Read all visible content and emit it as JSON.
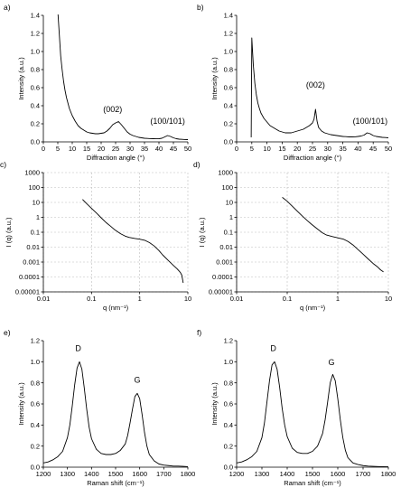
{
  "chart_data": [
    {
      "id": "a",
      "type": "line",
      "panel_label": "a)",
      "xlabel": "Diffraction angle (°)",
      "ylabel": "Intensity (a.u.)",
      "xlim": [
        0,
        50
      ],
      "ylim": [
        0,
        1.4
      ],
      "xscale": "linear",
      "yscale": "linear",
      "xticks": [
        "0",
        "5",
        "10",
        "15",
        "20",
        "25",
        "30",
        "35",
        "40",
        "45",
        "50"
      ],
      "yticks": [
        "0.0",
        "0.2",
        "0.4",
        "0.6",
        "0.8",
        "1.0",
        "1.2",
        "1.4"
      ],
      "grid": false,
      "x": [
        5,
        5.5,
        6,
        6.5,
        7,
        7.5,
        8,
        8.5,
        9,
        10,
        11,
        12,
        13,
        14,
        15,
        16,
        17,
        18,
        19,
        20,
        21,
        22,
        23,
        24,
        25,
        26,
        27,
        28,
        29,
        30,
        31,
        32,
        33,
        34,
        35,
        36,
        37,
        38,
        39,
        40,
        41,
        42,
        43,
        44,
        45,
        46,
        47,
        48,
        49,
        50
      ],
      "y": [
        1.45,
        1.2,
        0.95,
        0.8,
        0.67,
        0.57,
        0.49,
        0.43,
        0.37,
        0.29,
        0.23,
        0.18,
        0.15,
        0.13,
        0.11,
        0.1,
        0.095,
        0.09,
        0.09,
        0.095,
        0.1,
        0.12,
        0.15,
        0.19,
        0.21,
        0.225,
        0.19,
        0.15,
        0.11,
        0.085,
        0.07,
        0.06,
        0.05,
        0.045,
        0.04,
        0.038,
        0.036,
        0.035,
        0.034,
        0.035,
        0.04,
        0.055,
        0.07,
        0.06,
        0.045,
        0.035,
        0.03,
        0.028,
        0.026,
        0.025
      ],
      "annotations": [
        {
          "text": "(002)",
          "x": 24,
          "y": 0.33
        },
        {
          "text": "(100/101)",
          "x": 43,
          "y": 0.2
        }
      ]
    },
    {
      "id": "b",
      "type": "line",
      "panel_label": "b)",
      "xlabel": "Diffraction angle (°)",
      "ylabel": "Intensity (a.u.)",
      "xlim": [
        0,
        50
      ],
      "ylim": [
        0,
        1.4
      ],
      "xscale": "linear",
      "yscale": "linear",
      "xticks": [
        "0",
        "5",
        "10",
        "15",
        "20",
        "25",
        "30",
        "35",
        "40",
        "45",
        "50"
      ],
      "yticks": [
        "0.0",
        "0.2",
        "0.4",
        "0.6",
        "0.8",
        "1.0",
        "1.2",
        "1.4"
      ],
      "grid": false,
      "x": [
        4.8,
        5,
        5.5,
        6,
        6.5,
        7,
        7.5,
        8,
        9,
        10,
        11,
        12,
        13,
        14,
        15,
        16,
        17,
        18,
        19,
        20,
        21,
        22,
        23,
        24,
        25,
        25.5,
        26,
        26.5,
        27,
        28,
        29,
        30,
        31,
        32,
        33,
        34,
        35,
        36,
        37,
        38,
        39,
        40,
        41,
        42,
        43,
        44,
        45,
        46,
        47,
        48,
        49,
        50
      ],
      "y": [
        0.05,
        1.15,
        0.85,
        0.65,
        0.52,
        0.43,
        0.37,
        0.32,
        0.26,
        0.22,
        0.18,
        0.16,
        0.14,
        0.12,
        0.11,
        0.1,
        0.1,
        0.1,
        0.11,
        0.12,
        0.13,
        0.14,
        0.16,
        0.18,
        0.21,
        0.25,
        0.36,
        0.23,
        0.16,
        0.12,
        0.1,
        0.09,
        0.08,
        0.075,
        0.07,
        0.065,
        0.06,
        0.058,
        0.055,
        0.055,
        0.056,
        0.06,
        0.065,
        0.075,
        0.1,
        0.09,
        0.07,
        0.06,
        0.055,
        0.05,
        0.048,
        0.045
      ],
      "annotations": [
        {
          "text": "(002)",
          "x": 26,
          "y": 0.6
        },
        {
          "text": "(100/101)",
          "x": 44,
          "y": 0.2
        }
      ]
    },
    {
      "id": "c",
      "type": "line",
      "panel_label": "c)",
      "xlabel": "q (nm⁻¹)",
      "ylabel": "I (q) (a.u.)",
      "xlim": [
        0.01,
        10
      ],
      "ylim": [
        1e-05,
        1000
      ],
      "xscale": "log",
      "yscale": "log",
      "xticks": [
        "0.01",
        "0.1",
        "1",
        "10"
      ],
      "yticks": [
        "0.00001",
        "0.0001",
        "0.001",
        "0.01",
        "0.1",
        "1",
        "10",
        "100",
        "1000"
      ],
      "grid": true,
      "x": [
        0.065,
        0.08,
        0.1,
        0.13,
        0.16,
        0.2,
        0.25,
        0.3,
        0.4,
        0.5,
        0.6,
        0.8,
        1.0,
        1.3,
        1.6,
        2,
        2.5,
        3,
        4,
        5,
        6,
        7,
        7.5,
        8
      ],
      "y": [
        16,
        8,
        4,
        1.8,
        0.9,
        0.45,
        0.25,
        0.15,
        0.08,
        0.055,
        0.045,
        0.038,
        0.034,
        0.028,
        0.02,
        0.012,
        0.006,
        0.003,
        0.0012,
        0.0006,
        0.00035,
        0.0002,
        0.00013,
        4e-05
      ]
    },
    {
      "id": "d",
      "type": "line",
      "panel_label": "d)",
      "xlabel": "q (nm⁻¹)",
      "ylabel": "I (q) (a.u.)",
      "xlim": [
        0.01,
        10
      ],
      "ylim": [
        1e-05,
        1000
      ],
      "xscale": "log",
      "yscale": "log",
      "xticks": [
        "0.01",
        "0.1",
        "1",
        "10"
      ],
      "yticks": [
        "0.00001",
        "0.0001",
        "0.001",
        "0.01",
        "0.1",
        "1",
        "10",
        "100",
        "1000"
      ],
      "grid": true,
      "x": [
        0.08,
        0.1,
        0.13,
        0.16,
        0.2,
        0.25,
        0.3,
        0.4,
        0.5,
        0.6,
        0.8,
        1.0,
        1.3,
        1.6,
        2,
        2.5,
        3,
        4,
        5,
        6,
        7,
        8
      ],
      "y": [
        22,
        12,
        5,
        2.5,
        1.2,
        0.6,
        0.35,
        0.16,
        0.09,
        0.065,
        0.05,
        0.042,
        0.034,
        0.024,
        0.014,
        0.007,
        0.004,
        0.0016,
        0.0008,
        0.0005,
        0.0003,
        0.00022
      ]
    },
    {
      "id": "e",
      "type": "line",
      "panel_label": "e)",
      "xlabel": "Raman shift (cm⁻¹)",
      "ylabel": "Intensity (a.u.)",
      "xlim": [
        1200,
        1800
      ],
      "ylim": [
        0,
        1.2
      ],
      "xscale": "linear",
      "yscale": "linear",
      "xticks": [
        "1200",
        "1300",
        "1400",
        "1500",
        "1600",
        "1700",
        "1800"
      ],
      "yticks": [
        "0.0",
        "0.2",
        "0.4",
        "0.6",
        "0.8",
        "1.0",
        "1.2"
      ],
      "grid": false,
      "x": [
        1200,
        1220,
        1240,
        1260,
        1280,
        1300,
        1310,
        1320,
        1330,
        1340,
        1350,
        1360,
        1370,
        1380,
        1390,
        1400,
        1420,
        1440,
        1460,
        1480,
        1500,
        1520,
        1540,
        1550,
        1560,
        1570,
        1580,
        1590,
        1600,
        1610,
        1620,
        1630,
        1640,
        1660,
        1680,
        1700,
        1720,
        1740,
        1760,
        1780,
        1800
      ],
      "y": [
        0.04,
        0.05,
        0.07,
        0.1,
        0.15,
        0.28,
        0.4,
        0.58,
        0.78,
        0.94,
        1.0,
        0.93,
        0.75,
        0.55,
        0.38,
        0.27,
        0.17,
        0.13,
        0.12,
        0.12,
        0.13,
        0.16,
        0.22,
        0.3,
        0.42,
        0.55,
        0.67,
        0.7,
        0.65,
        0.5,
        0.33,
        0.2,
        0.12,
        0.06,
        0.03,
        0.02,
        0.015,
        0.01,
        0.01,
        0.008,
        0.005
      ],
      "annotations": [
        {
          "text": "D",
          "x": 1345,
          "y": 1.1
        },
        {
          "text": "G",
          "x": 1590,
          "y": 0.8
        }
      ]
    },
    {
      "id": "f",
      "type": "line",
      "panel_label": "f)",
      "xlabel": "Raman shift (cm⁻¹)",
      "ylabel": "Intensity (a.u.)",
      "xlim": [
        1200,
        1800
      ],
      "ylim": [
        0,
        1.2
      ],
      "xscale": "linear",
      "yscale": "linear",
      "xticks": [
        "1200",
        "1300",
        "1400",
        "1500",
        "1600",
        "1700",
        "1800"
      ],
      "yticks": [
        "0.0",
        "0.2",
        "0.4",
        "0.6",
        "0.8",
        "1.0",
        "1.2"
      ],
      "grid": false,
      "x": [
        1200,
        1220,
        1240,
        1260,
        1280,
        1300,
        1310,
        1320,
        1330,
        1340,
        1350,
        1360,
        1370,
        1380,
        1390,
        1400,
        1420,
        1440,
        1460,
        1480,
        1500,
        1520,
        1540,
        1550,
        1560,
        1570,
        1580,
        1590,
        1600,
        1610,
        1620,
        1630,
        1640,
        1660,
        1680,
        1700,
        1720,
        1740,
        1760,
        1780,
        1800
      ],
      "y": [
        0.04,
        0.05,
        0.07,
        0.1,
        0.15,
        0.28,
        0.42,
        0.62,
        0.82,
        0.97,
        1.0,
        0.93,
        0.76,
        0.56,
        0.4,
        0.29,
        0.18,
        0.14,
        0.13,
        0.13,
        0.15,
        0.2,
        0.32,
        0.45,
        0.62,
        0.8,
        0.88,
        0.82,
        0.65,
        0.45,
        0.28,
        0.16,
        0.09,
        0.04,
        0.025,
        0.015,
        0.01,
        0.008,
        0.006,
        0.005,
        0.004
      ],
      "annotations": [
        {
          "text": "D",
          "x": 1345,
          "y": 1.1
        },
        {
          "text": "G",
          "x": 1575,
          "y": 0.97
        }
      ]
    }
  ]
}
